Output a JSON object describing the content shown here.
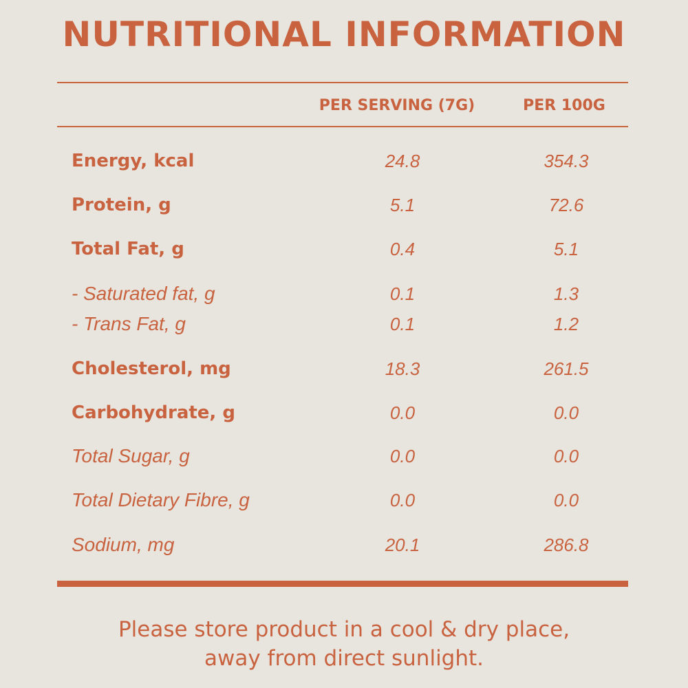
{
  "title": "NUTRITIONAL INFORMATION",
  "columns": {
    "per_serving": "PER SERVING (7G)",
    "per_100g": "PER 100G"
  },
  "rows": [
    {
      "label": "Energy, kcal",
      "per_serving": "24.8",
      "per_100g": "354.3"
    },
    {
      "label": "Protein, g",
      "per_serving": "5.1",
      "per_100g": "72.6"
    },
    {
      "label": "Total Fat, g",
      "per_serving": "0.4",
      "per_100g": "5.1"
    },
    {
      "label": "- Saturated fat, g",
      "per_serving": "0.1",
      "per_100g": "1.3"
    },
    {
      "label": "- Trans Fat, g",
      "per_serving": "0.1",
      "per_100g": "1.2"
    },
    {
      "label": "Cholesterol, mg",
      "per_serving": "18.3",
      "per_100g": "261.5"
    },
    {
      "label": "Carbohydrate, g",
      "per_serving": "0.0",
      "per_100g": "0.0"
    },
    {
      "label": "Total Sugar, g",
      "per_serving": "0.0",
      "per_100g": "0.0"
    },
    {
      "label": "Total Dietary Fibre, g",
      "per_serving": "0.0",
      "per_100g": "0.0"
    },
    {
      "label": "Sodium, mg",
      "per_serving": "20.1",
      "per_100g": "286.8"
    }
  ],
  "footer": {
    "line1": "Please store product in a cool & dry place,",
    "line2": "away from direct sunlight."
  },
  "colors": {
    "text": "#c8623f",
    "background": "#e8e5df"
  }
}
